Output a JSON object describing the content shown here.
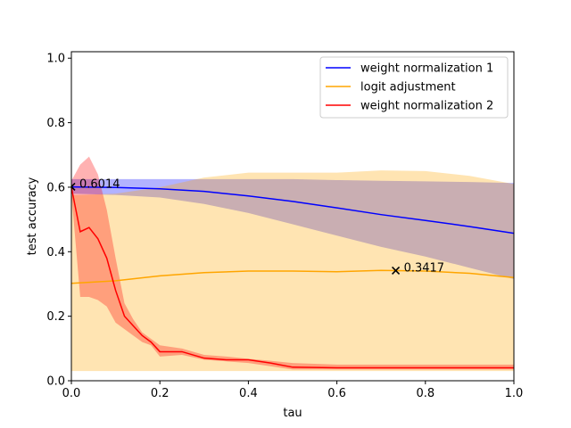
{
  "chart_data": {
    "type": "line",
    "xlabel": "tau",
    "ylabel": "test accuracy",
    "xlim": [
      0,
      1.0
    ],
    "ylim": [
      0,
      1.02
    ],
    "x_ticks": [
      {
        "value": 0.0,
        "label": "0.0"
      },
      {
        "value": 0.2,
        "label": "0.2"
      },
      {
        "value": 0.4,
        "label": "0.4"
      },
      {
        "value": 0.6,
        "label": "0.6"
      },
      {
        "value": 0.8,
        "label": "0.8"
      },
      {
        "value": 1.0,
        "label": "1.0"
      }
    ],
    "y_ticks": [
      {
        "value": 0.0,
        "label": "0.0"
      },
      {
        "value": 0.2,
        "label": "0.2"
      },
      {
        "value": 0.4,
        "label": "0.4"
      },
      {
        "value": 0.6,
        "label": "0.6"
      },
      {
        "value": 0.8,
        "label": "0.8"
      },
      {
        "value": 1.0,
        "label": "1.0"
      }
    ],
    "grid": false,
    "legend_position": "top-right",
    "series": [
      {
        "name": "weight normalization 1",
        "color": "#0000ff",
        "band_color": "#0000ff",
        "band_opacity": 0.3,
        "x": [
          0,
          0.1,
          0.2,
          0.3,
          0.4,
          0.5,
          0.6,
          0.7,
          0.8,
          0.9,
          1.0
        ],
        "y": [
          0.601,
          0.599,
          0.595,
          0.587,
          0.573,
          0.556,
          0.536,
          0.515,
          0.497,
          0.478,
          0.457
        ],
        "lower": [
          0.58,
          0.576,
          0.568,
          0.548,
          0.52,
          0.485,
          0.45,
          0.415,
          0.385,
          0.35,
          0.315
        ],
        "upper": [
          0.625,
          0.625,
          0.625,
          0.625,
          0.625,
          0.625,
          0.622,
          0.62,
          0.618,
          0.616,
          0.613
        ]
      },
      {
        "name": "logit adjustment",
        "color": "#ffa500",
        "band_color": "#ffa500",
        "band_opacity": 0.3,
        "x": [
          0,
          0.1,
          0.2,
          0.3,
          0.4,
          0.5,
          0.6,
          0.7,
          0.8,
          0.9,
          1.0
        ],
        "y": [
          0.302,
          0.31,
          0.325,
          0.335,
          0.34,
          0.34,
          0.338,
          0.342,
          0.34,
          0.333,
          0.32
        ],
        "lower": [
          0.03,
          0.03,
          0.03,
          0.03,
          0.03,
          0.03,
          0.03,
          0.03,
          0.03,
          0.03,
          0.03
        ],
        "upper": [
          0.575,
          0.58,
          0.6,
          0.63,
          0.645,
          0.645,
          0.645,
          0.652,
          0.65,
          0.635,
          0.61
        ]
      },
      {
        "name": "weight normalization 2",
        "color": "#ff0000",
        "band_color": "#ff0000",
        "band_opacity": 0.3,
        "x": [
          0,
          0.02,
          0.04,
          0.06,
          0.08,
          0.1,
          0.12,
          0.14,
          0.16,
          0.18,
          0.2,
          0.25,
          0.3,
          0.35,
          0.4,
          0.45,
          0.5,
          0.6,
          0.7,
          0.8,
          0.9,
          1.0
        ],
        "y": [
          0.6,
          0.462,
          0.475,
          0.44,
          0.38,
          0.28,
          0.2,
          0.17,
          0.14,
          0.12,
          0.09,
          0.09,
          0.07,
          0.065,
          0.065,
          0.055,
          0.042,
          0.04,
          0.04,
          0.04,
          0.04,
          0.04
        ],
        "lower": [
          0.58,
          0.26,
          0.26,
          0.25,
          0.23,
          0.18,
          0.16,
          0.14,
          0.12,
          0.11,
          0.075,
          0.08,
          0.065,
          0.06,
          0.055,
          0.045,
          0.035,
          0.035,
          0.035,
          0.035,
          0.035,
          0.035
        ],
        "upper": [
          0.62,
          0.67,
          0.695,
          0.64,
          0.53,
          0.38,
          0.24,
          0.19,
          0.15,
          0.13,
          0.11,
          0.1,
          0.08,
          0.075,
          0.068,
          0.062,
          0.055,
          0.05,
          0.05,
          0.05,
          0.05,
          0.05
        ]
      }
    ],
    "annotations": [
      {
        "x": 0.0,
        "y": 0.6014,
        "text": "0.6014",
        "marker": "x",
        "color": "#000000"
      },
      {
        "x": 0.733,
        "y": 0.3417,
        "text": "0.3417",
        "marker": "x",
        "color": "#000000"
      }
    ]
  }
}
